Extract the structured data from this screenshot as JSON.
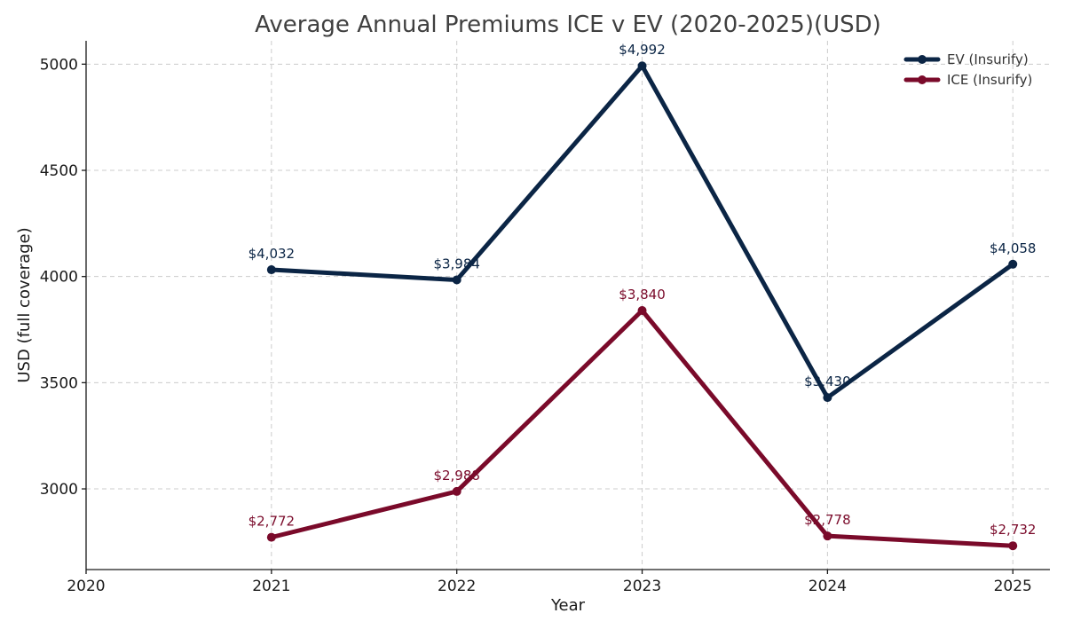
{
  "chart_data": {
    "type": "line",
    "title": "Average Annual Premiums ICE v EV (2020-2025)(USD)",
    "xlabel": "Year",
    "ylabel": "USD (full coverage)",
    "x_ticks": [
      "2020",
      "2021",
      "2022",
      "2023",
      "2024",
      "2025"
    ],
    "y_ticks": [
      "3000",
      "3500",
      "4000",
      "4500",
      "5000"
    ],
    "xlim": [
      2020,
      2025.2
    ],
    "ylim": [
      2620,
      5110
    ],
    "grid": true,
    "legend_position": "top-right",
    "series": [
      {
        "name": "EV (Insurify)",
        "color": "#0b2545",
        "x": [
          2021,
          2022,
          2023,
          2024,
          2025
        ],
        "values": [
          4032,
          3984,
          4992,
          3430,
          4058
        ],
        "labels": [
          "$4,032",
          "$3,984",
          "$4,992",
          "$3,430",
          "$4,058"
        ]
      },
      {
        "name": "ICE (Insurify)",
        "color": "#7a0a2a",
        "x": [
          2021,
          2022,
          2023,
          2024,
          2025
        ],
        "values": [
          2772,
          2988,
          3840,
          2778,
          2732
        ],
        "labels": [
          "$2,772",
          "$2,988",
          "$3,840",
          "$2,778",
          "$2,732"
        ]
      }
    ]
  }
}
